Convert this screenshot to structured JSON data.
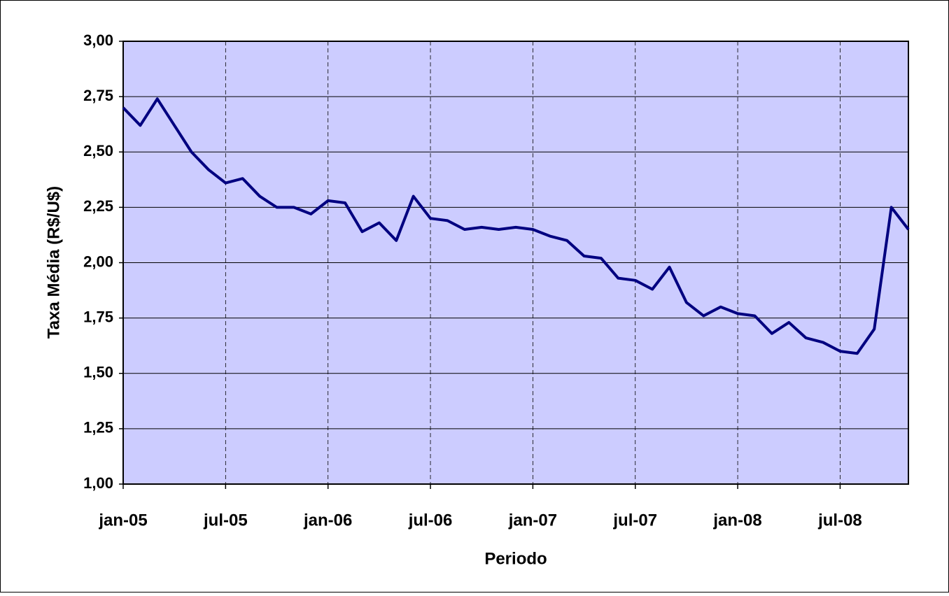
{
  "chart_data": {
    "type": "line",
    "y_label": "Taxa Média (R$/U$)",
    "x_label": "Periodo",
    "x": [
      "2005-01",
      "2005-02",
      "2005-03",
      "2005-04",
      "2005-05",
      "2005-06",
      "2005-07",
      "2005-08",
      "2005-09",
      "2005-10",
      "2005-11",
      "2005-12",
      "2006-01",
      "2006-02",
      "2006-03",
      "2006-04",
      "2006-05",
      "2006-06",
      "2006-07",
      "2006-08",
      "2006-09",
      "2006-10",
      "2006-11",
      "2006-12",
      "2007-01",
      "2007-02",
      "2007-03",
      "2007-04",
      "2007-05",
      "2007-06",
      "2007-07",
      "2007-08",
      "2007-09",
      "2007-10",
      "2007-11",
      "2007-12",
      "2008-01",
      "2008-02",
      "2008-03",
      "2008-04",
      "2008-05",
      "2008-06",
      "2008-07",
      "2008-08",
      "2008-09",
      "2008-10",
      "2008-11"
    ],
    "series": [
      {
        "name": "Taxa Média",
        "color": "#000080",
        "values": [
          2.7,
          2.62,
          2.74,
          2.62,
          2.5,
          2.42,
          2.36,
          2.38,
          2.3,
          2.25,
          2.25,
          2.22,
          2.28,
          2.27,
          2.14,
          2.18,
          2.1,
          2.3,
          2.2,
          2.19,
          2.15,
          2.16,
          2.15,
          2.16,
          2.15,
          2.12,
          2.1,
          2.03,
          2.02,
          1.93,
          1.92,
          1.88,
          1.98,
          1.82,
          1.76,
          1.8,
          1.77,
          1.76,
          1.68,
          1.73,
          1.66,
          1.64,
          1.6,
          1.59,
          1.7,
          2.25,
          2.15
        ]
      }
    ],
    "xlim": [
      "2005-01",
      "2008-11"
    ],
    "xticks": [
      {
        "value": "2005-01",
        "label": "jan-05"
      },
      {
        "value": "2005-07",
        "label": "jul-05"
      },
      {
        "value": "2006-01",
        "label": "jan-06"
      },
      {
        "value": "2006-07",
        "label": "jul-06"
      },
      {
        "value": "2007-01",
        "label": "jan-07"
      },
      {
        "value": "2007-07",
        "label": "jul-07"
      },
      {
        "value": "2008-01",
        "label": "jan-08"
      },
      {
        "value": "2008-07",
        "label": "jul-08"
      }
    ],
    "ylim": [
      1.0,
      3.0
    ],
    "yticks": [
      {
        "value": 1.0,
        "label": "1,00"
      },
      {
        "value": 1.25,
        "label": "1,25"
      },
      {
        "value": 1.5,
        "label": "1,50"
      },
      {
        "value": 1.75,
        "label": "1,75"
      },
      {
        "value": 2.0,
        "label": "2,00"
      },
      {
        "value": 2.25,
        "label": "2,25"
      },
      {
        "value": 2.5,
        "label": "2,50"
      },
      {
        "value": 2.75,
        "label": "2,75"
      },
      {
        "value": 3.0,
        "label": "3,00"
      }
    ],
    "grid": true,
    "plot_background": "#ccccff"
  }
}
